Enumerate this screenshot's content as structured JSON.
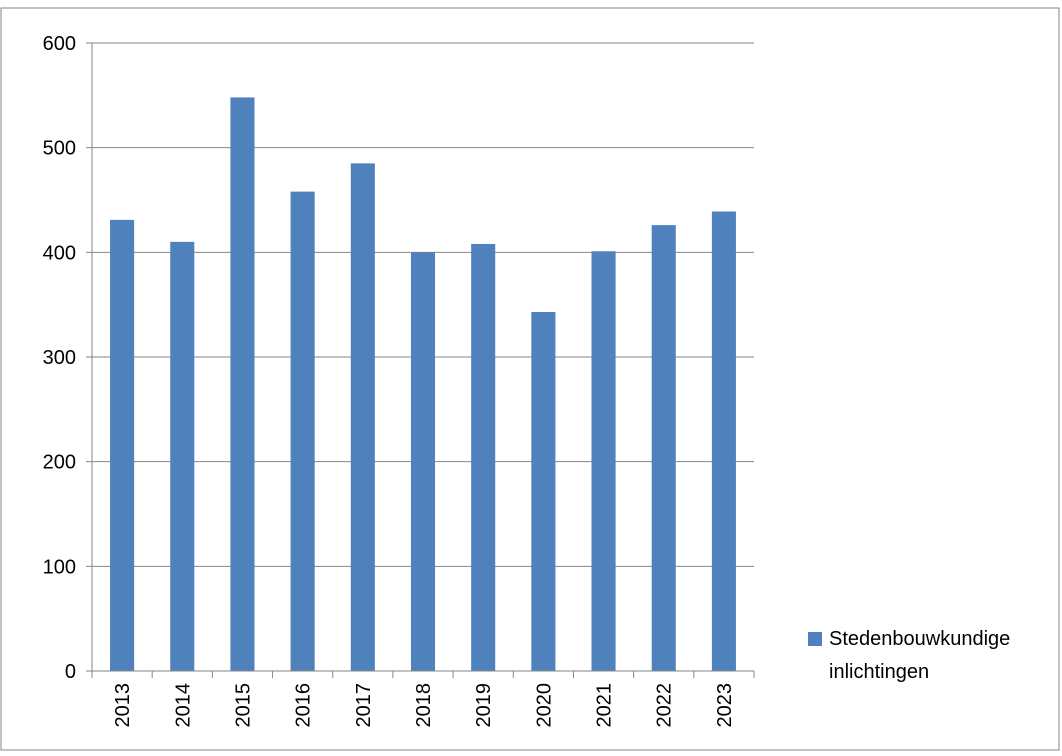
{
  "chart_data": {
    "type": "bar",
    "title": "",
    "xlabel": "",
    "ylabel": "",
    "categories": [
      "2013",
      "2014",
      "2015",
      "2016",
      "2017",
      "2018",
      "2019",
      "2020",
      "2021",
      "2022",
      "2023"
    ],
    "series": [
      {
        "name": "Stedenbouwkundige inlichtingen",
        "values": [
          431,
          410,
          548,
          458,
          485,
          400,
          408,
          343,
          401,
          426,
          439
        ]
      }
    ],
    "legend_lines": [
      "Stedenbouwkundige",
      "inlichtingen"
    ],
    "ylim": [
      0,
      600
    ],
    "yticks": [
      0,
      100,
      200,
      300,
      400,
      500,
      600
    ],
    "grid": true,
    "legend_position": "right",
    "colors": {
      "bar": "#4F81BD",
      "grid": "#868686",
      "axis": "#868686",
      "frame": "#868686"
    }
  }
}
